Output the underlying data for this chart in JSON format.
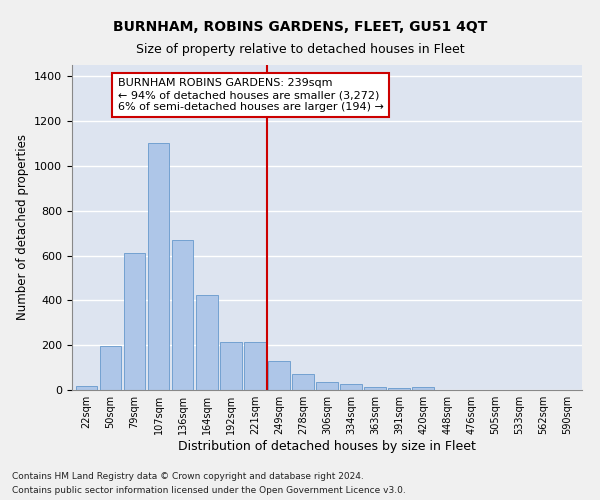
{
  "title": "BURNHAM, ROBINS GARDENS, FLEET, GU51 4QT",
  "subtitle": "Size of property relative to detached houses in Fleet",
  "xlabel": "Distribution of detached houses by size in Fleet",
  "ylabel": "Number of detached properties",
  "footnote1": "Contains HM Land Registry data © Crown copyright and database right 2024.",
  "footnote2": "Contains public sector information licensed under the Open Government Licence v3.0.",
  "bar_labels": [
    "22sqm",
    "50sqm",
    "79sqm",
    "107sqm",
    "136sqm",
    "164sqm",
    "192sqm",
    "221sqm",
    "249sqm",
    "278sqm",
    "306sqm",
    "334sqm",
    "363sqm",
    "391sqm",
    "420sqm",
    "448sqm",
    "476sqm",
    "505sqm",
    "533sqm",
    "562sqm",
    "590sqm"
  ],
  "bar_values": [
    20,
    195,
    610,
    1100,
    670,
    425,
    215,
    215,
    130,
    70,
    35,
    28,
    12,
    10,
    13,
    0,
    0,
    0,
    0,
    0,
    0
  ],
  "bar_color": "#aec6e8",
  "bar_edge_color": "#6699cc",
  "background_color": "#dde4f0",
  "grid_color": "#ffffff",
  "fig_background": "#f0f0f0",
  "annotation_text": "BURNHAM ROBINS GARDENS: 239sqm\n← 94% of detached houses are smaller (3,272)\n6% of semi-detached houses are larger (194) →",
  "annotation_box_color": "#ffffff",
  "annotation_box_edge": "#cc0000",
  "vline_x_index": 7.5,
  "vline_color": "#cc0000",
  "ylim": [
    0,
    1450
  ],
  "title_fontsize": 10,
  "subtitle_fontsize": 9,
  "xlabel_fontsize": 9,
  "ylabel_fontsize": 8.5,
  "tick_fontsize": 7,
  "annotation_fontsize": 8,
  "footnote_fontsize": 6.5
}
